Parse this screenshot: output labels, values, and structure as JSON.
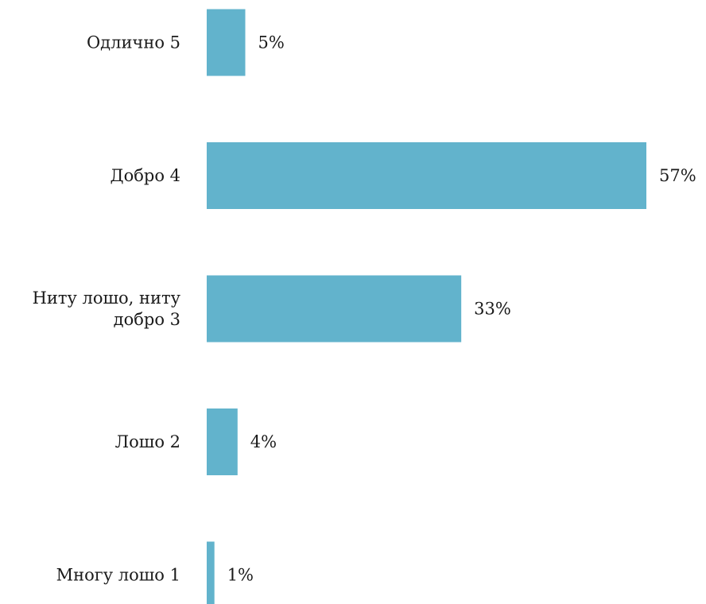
{
  "chart_data": {
    "type": "bar",
    "orientation": "horizontal",
    "categories": [
      "Одлично 5",
      "Добро 4",
      "Ниту лошо, ниту добро 3",
      "Лошо 2",
      "Многу лошо 1"
    ],
    "category_lines": [
      [
        "Одлично 5"
      ],
      [
        "Добро 4"
      ],
      [
        "Ниту лошо, ниту",
        "добро 3"
      ],
      [
        "Лошо 2"
      ],
      [
        "Многу лошо 1"
      ]
    ],
    "values": [
      5,
      57,
      33,
      4,
      1
    ],
    "value_labels": [
      "5%",
      "57%",
      "33%",
      "4%",
      "1%"
    ],
    "title": "",
    "xlabel": "",
    "ylabel": "",
    "xlim": [
      0,
      57
    ],
    "grid": false,
    "legend": "none",
    "bar_color": "#62b3cc"
  }
}
